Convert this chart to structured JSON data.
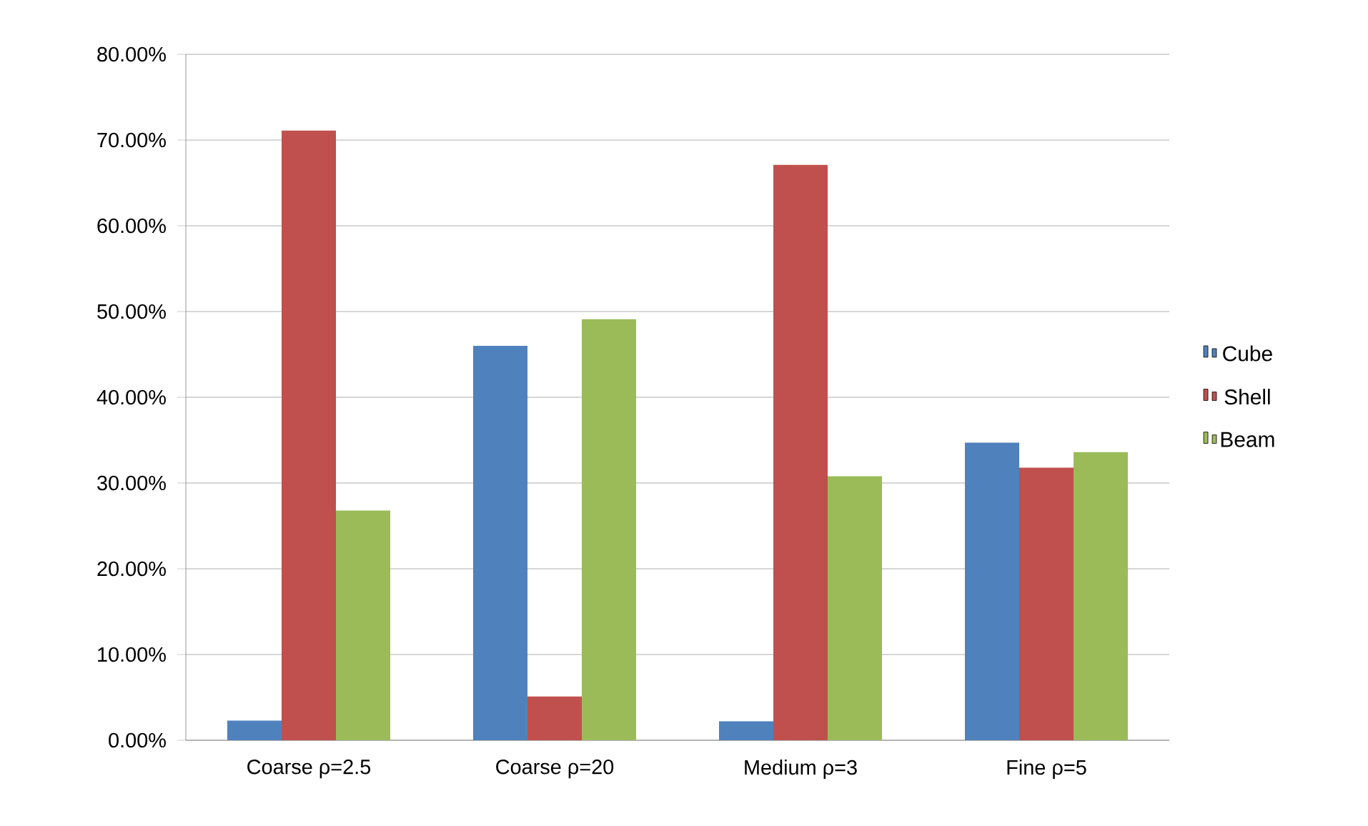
{
  "chart_data": {
    "type": "bar",
    "categories": [
      "Coarse ρ=2.5",
      "Coarse ρ=20",
      "Medium ρ=3",
      "Fine ρ=5"
    ],
    "series": [
      {
        "name": "Cube",
        "color": "#4f81bd",
        "values": [
          2.3,
          46.0,
          2.2,
          34.7
        ]
      },
      {
        "name": "Shell",
        "color": "#c0504d",
        "values": [
          71.1,
          5.1,
          67.1,
          31.8
        ]
      },
      {
        "name": "Beam",
        "color": "#9bbb59",
        "values": [
          26.8,
          49.1,
          30.8,
          33.6
        ]
      }
    ],
    "ylim": [
      0,
      80
    ],
    "yticks": [
      {
        "value": 0,
        "label": "0.00%"
      },
      {
        "value": 10,
        "label": "10.00%"
      },
      {
        "value": 20,
        "label": "20.00%"
      },
      {
        "value": 30,
        "label": "30.00%"
      },
      {
        "value": 40,
        "label": "40.00%"
      },
      {
        "value": 50,
        "label": "50.00%"
      },
      {
        "value": 60,
        "label": "60.00%"
      },
      {
        "value": 70,
        "label": "70.00%"
      },
      {
        "value": 80,
        "label": "80.00%"
      }
    ],
    "grid": "y",
    "legend": "right"
  }
}
